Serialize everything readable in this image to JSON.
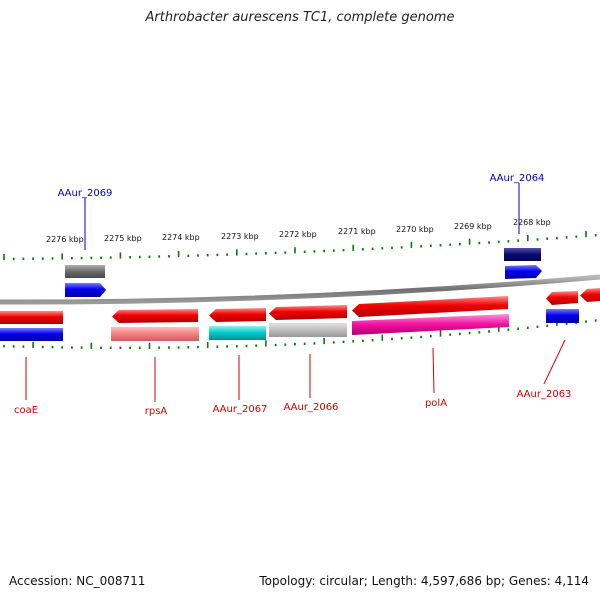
{
  "title": "Arthrobacter aurescens TC1, complete genome",
  "footer": {
    "accession": "Accession: NC_008711",
    "summary": "Topology: circular; Length: 4,597,686 bp; Genes: 4,114"
  },
  "scale_labels": [
    "2276 kbp",
    "2275 kbp",
    "2274 kbp",
    "2273 kbp",
    "2272 kbp",
    "2271 kbp",
    "2270 kbp",
    "2269 kbp",
    "2268 kbp"
  ],
  "gene_labels": {
    "top": [
      "AAur_2069",
      "AAur_2064"
    ],
    "bottom": [
      "coaE",
      "rpsA",
      "AAur_2067",
      "AAur_2066",
      "polA",
      "AAur_2063"
    ]
  },
  "colors": {
    "cds": "#e80000",
    "protein": "#0000ee",
    "label_red": "#d60000",
    "label_blue": "#0000c8",
    "scale": "#0a7a0a",
    "backbone": "#7a7a7a"
  }
}
